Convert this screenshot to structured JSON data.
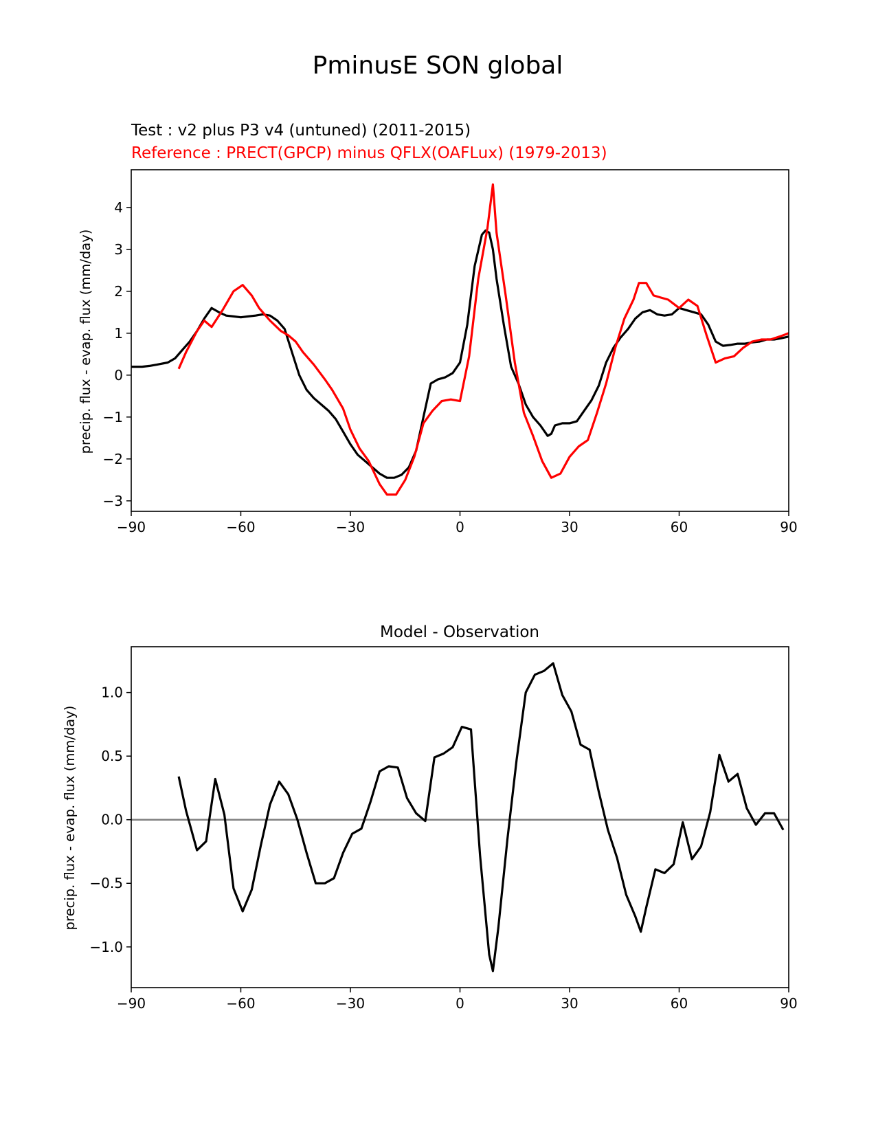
{
  "figure": {
    "title": "PminusE SON global"
  },
  "chart_data": [
    {
      "type": "line",
      "subtitle_test": "Test : v2 plus P3 v4 (untuned) (2011-2015)",
      "subtitle_ref": "Reference : PRECT(GPCP) minus QFLX(OAFLux) (1979-2013)",
      "xlabel": "",
      "ylabel": "precip. flux - evap. flux (mm/day)",
      "xlim": [
        -90,
        90
      ],
      "ylim": [
        -3.25,
        4.9
      ],
      "xticks": [
        -90,
        -60,
        -30,
        0,
        30,
        60,
        90
      ],
      "xtick_labels": [
        "−90",
        "−60",
        "−30",
        "0",
        "30",
        "60",
        "90"
      ],
      "yticks": [
        -3,
        -2,
        -1,
        0,
        1,
        2,
        3,
        4
      ],
      "ytick_labels": [
        "−3",
        "−2",
        "−1",
        "0",
        "1",
        "2",
        "3",
        "4"
      ],
      "series": [
        {
          "name": "Test",
          "color": "#000000",
          "x": [
            -90,
            -87,
            -85,
            -83,
            -80,
            -78,
            -76,
            -74,
            -72,
            -70,
            -68,
            -66,
            -64,
            -62,
            -60,
            -58,
            -56,
            -54,
            -52,
            -50,
            -48,
            -46,
            -44,
            -42,
            -40,
            -38,
            -36,
            -34,
            -32,
            -30,
            -28,
            -26,
            -24,
            -22,
            -20,
            -18,
            -16,
            -14,
            -12,
            -10,
            -8,
            -6,
            -4,
            -2,
            0,
            2,
            4,
            6,
            7,
            8,
            9,
            10,
            12,
            14,
            16,
            18,
            20,
            22,
            24,
            25,
            26,
            28,
            30,
            32,
            34,
            36,
            38,
            40,
            42,
            44,
            46,
            48,
            50,
            52,
            54,
            56,
            58,
            60,
            62,
            64,
            66,
            68,
            70,
            72,
            74,
            76,
            78,
            80,
            82,
            84,
            86,
            88,
            90
          ],
          "y": [
            0.2,
            0.2,
            0.22,
            0.25,
            0.3,
            0.4,
            0.6,
            0.8,
            1.05,
            1.35,
            1.6,
            1.5,
            1.42,
            1.4,
            1.38,
            1.4,
            1.42,
            1.45,
            1.42,
            1.3,
            1.1,
            0.55,
            0.0,
            -0.35,
            -0.55,
            -0.7,
            -0.85,
            -1.05,
            -1.35,
            -1.65,
            -1.9,
            -2.05,
            -2.2,
            -2.35,
            -2.45,
            -2.45,
            -2.38,
            -2.2,
            -1.8,
            -1.0,
            -0.2,
            -0.1,
            -0.05,
            0.05,
            0.3,
            1.2,
            2.6,
            3.35,
            3.45,
            3.4,
            3.0,
            2.3,
            1.2,
            0.2,
            -0.2,
            -0.7,
            -1.0,
            -1.2,
            -1.45,
            -1.4,
            -1.2,
            -1.15,
            -1.15,
            -1.1,
            -0.85,
            -0.6,
            -0.25,
            0.3,
            0.65,
            0.9,
            1.1,
            1.35,
            1.5,
            1.55,
            1.45,
            1.42,
            1.45,
            1.6,
            1.55,
            1.5,
            1.45,
            1.2,
            0.8,
            0.7,
            0.72,
            0.75,
            0.75,
            0.78,
            0.8,
            0.85,
            0.85,
            0.88,
            0.92
          ]
        },
        {
          "name": "Reference",
          "color": "#ff0000",
          "x": [
            -77,
            -75,
            -72,
            -70,
            -68,
            -65,
            -62,
            -59.5,
            -57,
            -55,
            -52,
            -49,
            -47,
            -45,
            -43,
            -40,
            -37,
            -35,
            -32,
            -30,
            -27.5,
            -25,
            -22,
            -20,
            -17.5,
            -15,
            -12.5,
            -10,
            -7.5,
            -5,
            -2.5,
            0,
            2.5,
            5,
            7.5,
            9,
            10,
            12.5,
            15,
            17.5,
            20,
            22.5,
            25,
            27.5,
            30,
            32.5,
            35,
            37.5,
            40,
            42.5,
            45,
            47.5,
            49,
            51,
            53,
            55,
            57,
            60,
            62.5,
            65,
            67.5,
            70,
            72.5,
            75,
            77.5,
            80,
            82.5,
            85,
            87.5,
            90
          ],
          "y": [
            0.15,
            0.55,
            1.05,
            1.3,
            1.15,
            1.55,
            2.0,
            2.15,
            1.9,
            1.6,
            1.3,
            1.05,
            0.95,
            0.8,
            0.55,
            0.25,
            -0.1,
            -0.35,
            -0.8,
            -1.3,
            -1.75,
            -2.05,
            -2.6,
            -2.85,
            -2.85,
            -2.5,
            -1.95,
            -1.15,
            -0.85,
            -0.62,
            -0.58,
            -0.62,
            0.45,
            2.3,
            3.5,
            4.55,
            3.4,
            1.9,
            0.3,
            -0.9,
            -1.45,
            -2.05,
            -2.45,
            -2.35,
            -1.95,
            -1.7,
            -1.55,
            -0.9,
            -0.2,
            0.65,
            1.35,
            1.8,
            2.2,
            2.2,
            1.9,
            1.85,
            1.8,
            1.6,
            1.8,
            1.65,
            0.95,
            0.3,
            0.4,
            0.45,
            0.65,
            0.8,
            0.85,
            0.85,
            0.92,
            1.0
          ]
        }
      ]
    },
    {
      "type": "line",
      "title": "Model - Observation",
      "xlabel": "",
      "ylabel": "precip. flux - evap. flux (mm/day)",
      "xlim": [
        -90,
        90
      ],
      "ylim": [
        -1.32,
        1.36
      ],
      "xticks": [
        -90,
        -60,
        -30,
        0,
        30,
        60,
        90
      ],
      "xtick_labels": [
        "−90",
        "−60",
        "−30",
        "0",
        "30",
        "60",
        "90"
      ],
      "yticks": [
        -1.0,
        -0.5,
        0.0,
        0.5,
        1.0
      ],
      "ytick_labels": [
        "−1.0",
        "−0.5",
        "0.0",
        "0.5",
        "1.0"
      ],
      "zero_line_color": "#808080",
      "series": [
        {
          "name": "Model - Observation",
          "color": "#000000",
          "x": [
            -77,
            -75,
            -72,
            -69.5,
            -67,
            -64.5,
            -62,
            -59.5,
            -57,
            -54.5,
            -52,
            -49.5,
            -47,
            -44.5,
            -42,
            -39.5,
            -37,
            -34.5,
            -32,
            -29.5,
            -27,
            -24.5,
            -22,
            -19.5,
            -17,
            -14.5,
            -12,
            -9.5,
            -7,
            -4.5,
            -2,
            0.5,
            3,
            5.5,
            8,
            9,
            10.5,
            13,
            15.5,
            18,
            20.5,
            23,
            25.5,
            28,
            30.5,
            33,
            35.5,
            38,
            40.5,
            43,
            45.5,
            48,
            49.5,
            51,
            53.5,
            56,
            58.5,
            61,
            63.5,
            66,
            68.5,
            71,
            73.5,
            76,
            78.5,
            81,
            83.5,
            86,
            88.5
          ],
          "y": [
            0.34,
            0.07,
            -0.24,
            -0.17,
            0.32,
            0.04,
            -0.54,
            -0.72,
            -0.55,
            -0.2,
            0.12,
            0.3,
            0.2,
            0.0,
            -0.26,
            -0.5,
            -0.5,
            -0.46,
            -0.26,
            -0.11,
            -0.07,
            0.14,
            0.38,
            0.42,
            0.41,
            0.17,
            0.05,
            -0.01,
            0.49,
            0.52,
            0.57,
            0.73,
            0.71,
            -0.28,
            -1.06,
            -1.19,
            -0.85,
            -0.15,
            0.47,
            1.0,
            1.14,
            1.17,
            1.23,
            0.98,
            0.85,
            0.59,
            0.55,
            0.22,
            -0.08,
            -0.3,
            -0.59,
            -0.76,
            -0.88,
            -0.69,
            -0.39,
            -0.42,
            -0.35,
            -0.02,
            -0.31,
            -0.21,
            0.06,
            0.51,
            0.3,
            0.36,
            0.09,
            -0.04,
            0.05,
            0.05,
            -0.08
          ]
        }
      ]
    }
  ]
}
